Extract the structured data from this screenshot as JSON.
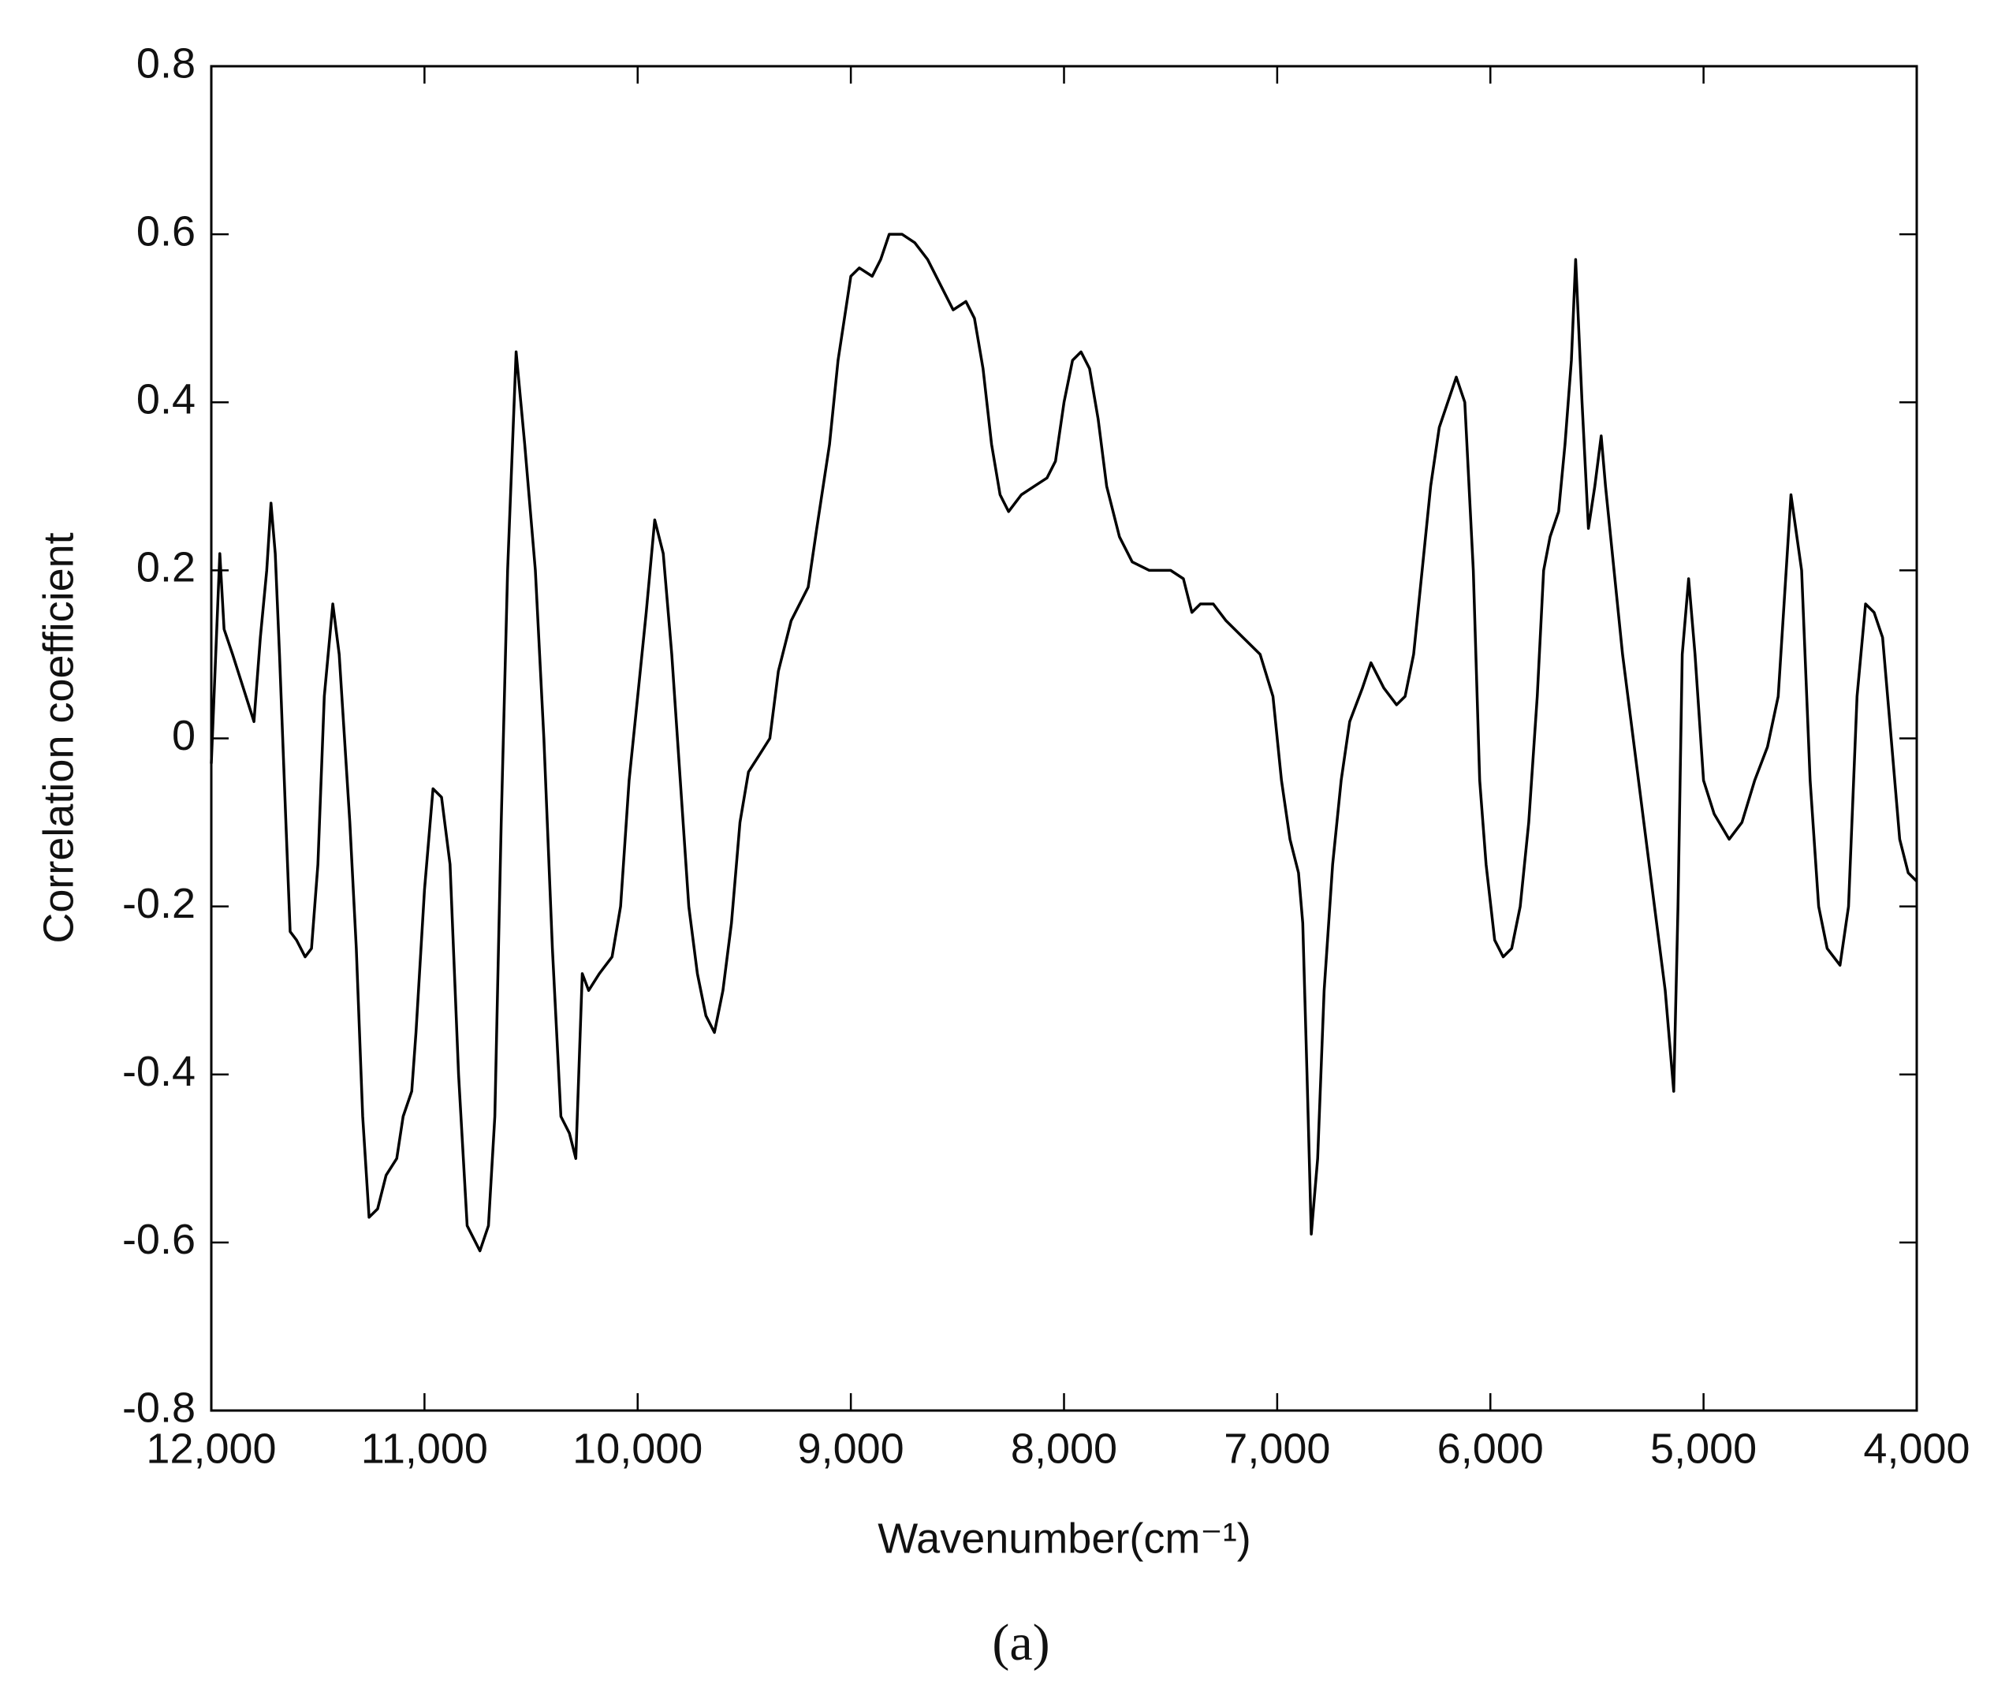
{
  "chart_data": {
    "type": "line",
    "x_label": "Wavenumber(cm⁻¹)",
    "y_label": "Correlation coefficient",
    "caption": "(a)",
    "color": "#000000",
    "xlim": [
      12000,
      4000
    ],
    "xticks": [
      {
        "value": 12000,
        "label": "12,000"
      },
      {
        "value": 11000,
        "label": "11,000"
      },
      {
        "value": 10000,
        "label": "10,000"
      },
      {
        "value": 9000,
        "label": "9,000"
      },
      {
        "value": 8000,
        "label": "8,000"
      },
      {
        "value": 7000,
        "label": "7,000"
      },
      {
        "value": 6000,
        "label": "6,000"
      },
      {
        "value": 5000,
        "label": "5,000"
      },
      {
        "value": 4000,
        "label": "4,000"
      }
    ],
    "ylim": [
      -0.8,
      0.8
    ],
    "yticks": [
      0.8,
      0.6,
      0.4,
      0.2,
      0,
      -0.2,
      -0.4,
      -0.6,
      -0.8
    ],
    "x": [
      12000,
      11960,
      11940,
      11900,
      11850,
      11800,
      11770,
      11740,
      11720,
      11700,
      11680,
      11650,
      11630,
      11600,
      11560,
      11530,
      11500,
      11470,
      11430,
      11400,
      11350,
      11320,
      11290,
      11260,
      11220,
      11180,
      11130,
      11100,
      11060,
      11040,
      11000,
      10960,
      10920,
      10880,
      10840,
      10800,
      10740,
      10700,
      10670,
      10640,
      10610,
      10570,
      10530,
      10480,
      10440,
      10400,
      10360,
      10320,
      10290,
      10260,
      10230,
      10180,
      10120,
      10080,
      10040,
      10000,
      9960,
      9920,
      9880,
      9840,
      9800,
      9760,
      9720,
      9680,
      9640,
      9600,
      9560,
      9520,
      9480,
      9430,
      9380,
      9340,
      9280,
      9200,
      9160,
      9100,
      9060,
      9000,
      8960,
      8900,
      8860,
      8820,
      8760,
      8700,
      8640,
      8580,
      8520,
      8460,
      8420,
      8380,
      8340,
      8300,
      8260,
      8200,
      8140,
      8080,
      8040,
      8000,
      7960,
      7920,
      7880,
      7840,
      7800,
      7740,
      7680,
      7600,
      7500,
      7440,
      7400,
      7360,
      7300,
      7240,
      7160,
      7080,
      7020,
      6980,
      6940,
      6900,
      6880,
      6860,
      6840,
      6810,
      6780,
      6740,
      6700,
      6660,
      6600,
      6560,
      6500,
      6440,
      6400,
      6360,
      6320,
      6280,
      6240,
      6200,
      6160,
      6120,
      6080,
      6050,
      6020,
      5980,
      5940,
      5900,
      5860,
      5820,
      5780,
      5750,
      5720,
      5680,
      5650,
      5620,
      5600,
      5570,
      5540,
      5510,
      5480,
      5460,
      5420,
      5380,
      5330,
      5280,
      5230,
      5180,
      5140,
      5120,
      5100,
      5070,
      5040,
      5000,
      4950,
      4880,
      4820,
      4760,
      4700,
      4650,
      4600,
      4590,
      4540,
      4500,
      4460,
      4420,
      4360,
      4320,
      4280,
      4240,
      4200,
      4160,
      4120,
      4080,
      4040,
      4000
    ],
    "values": [
      -0.03,
      0.22,
      0.13,
      0.1,
      0.06,
      0.02,
      0.12,
      0.2,
      0.28,
      0.22,
      0.1,
      -0.1,
      -0.23,
      -0.24,
      -0.26,
      -0.25,
      -0.15,
      0.05,
      0.16,
      0.1,
      -0.1,
      -0.25,
      -0.45,
      -0.57,
      -0.56,
      -0.52,
      -0.5,
      -0.45,
      -0.42,
      -0.35,
      -0.18,
      -0.06,
      -0.07,
      -0.15,
      -0.4,
      -0.58,
      -0.61,
      -0.58,
      -0.45,
      -0.1,
      0.2,
      0.46,
      0.35,
      0.2,
      0.0,
      -0.25,
      -0.45,
      -0.47,
      -0.5,
      -0.28,
      -0.3,
      -0.28,
      -0.26,
      -0.2,
      -0.05,
      0.05,
      0.15,
      0.26,
      0.22,
      0.1,
      -0.05,
      -0.2,
      -0.28,
      -0.33,
      -0.35,
      -0.3,
      -0.22,
      -0.1,
      -0.04,
      -0.02,
      0.0,
      0.08,
      0.14,
      0.18,
      0.25,
      0.35,
      0.45,
      0.55,
      0.56,
      0.55,
      0.57,
      0.6,
      0.6,
      0.59,
      0.57,
      0.54,
      0.51,
      0.52,
      0.5,
      0.44,
      0.35,
      0.29,
      0.27,
      0.29,
      0.3,
      0.31,
      0.33,
      0.4,
      0.45,
      0.46,
      0.44,
      0.38,
      0.3,
      0.24,
      0.21,
      0.2,
      0.2,
      0.19,
      0.15,
      0.16,
      0.16,
      0.14,
      0.12,
      0.1,
      0.05,
      -0.05,
      -0.12,
      -0.16,
      -0.22,
      -0.4,
      -0.59,
      -0.5,
      -0.3,
      -0.15,
      -0.05,
      0.02,
      0.06,
      0.09,
      0.06,
      0.04,
      0.05,
      0.1,
      0.2,
      0.3,
      0.37,
      0.4,
      0.43,
      0.4,
      0.2,
      -0.05,
      -0.15,
      -0.24,
      -0.26,
      -0.25,
      -0.2,
      -0.1,
      0.05,
      0.2,
      0.24,
      0.27,
      0.35,
      0.45,
      0.57,
      0.4,
      0.25,
      0.3,
      0.36,
      0.3,
      0.2,
      0.1,
      0.0,
      -0.1,
      -0.2,
      -0.3,
      -0.42,
      -0.2,
      0.1,
      0.19,
      0.1,
      -0.05,
      -0.09,
      -0.12,
      -0.1,
      -0.05,
      -0.01,
      0.05,
      0.25,
      0.29,
      0.2,
      -0.05,
      -0.2,
      -0.25,
      -0.27,
      -0.2,
      0.05,
      0.16,
      0.15,
      0.12,
      0.0,
      -0.12,
      -0.16,
      -0.17
    ]
  }
}
